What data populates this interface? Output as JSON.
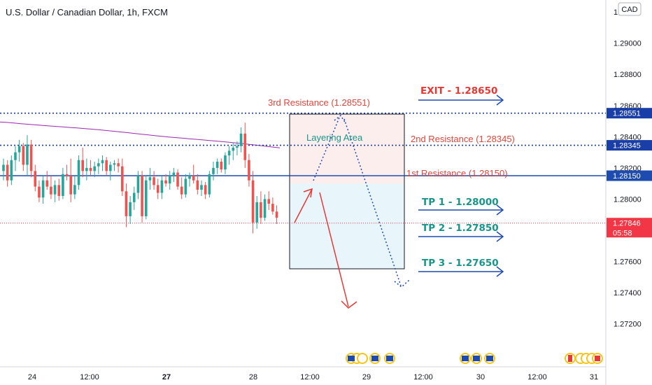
{
  "header": {
    "title": "U.S. Dollar / Canadian Dollar, 1h, FXCM"
  },
  "currency_badge": "CAD",
  "price_axis": {
    "ticks": [
      "1.29200",
      "1.29000",
      "1.28800",
      "1.28600",
      "1.28400",
      "1.28200",
      "1.28000",
      "1.27600",
      "1.27400",
      "1.27200"
    ],
    "tick_values": [
      1.292,
      1.29,
      1.288,
      1.286,
      1.284,
      1.282,
      1.28,
      1.276,
      1.274,
      1.272
    ]
  },
  "time_axis": {
    "labels": [
      "24",
      "12:00",
      "27",
      "12:00",
      "28",
      "12:00",
      "29",
      "12:00",
      "30",
      "12:00",
      "31"
    ],
    "bold": [
      false,
      false,
      true,
      false,
      false,
      false,
      false,
      false,
      false,
      false,
      false
    ]
  },
  "price_tags": {
    "r3": "1.28551",
    "r2": "1.28345",
    "r1": "1.28150",
    "current": "1.27846",
    "countdown": "05:58"
  },
  "annotations": {
    "r3_label": "3rd Resistance (1.28551)",
    "r2_label": "2nd Resistance (1.28345)",
    "r1_label": "1st Resistance (1.28150)",
    "layering": "Layering Area",
    "exit": "EXIT - 1.28650",
    "tp1": "TP 1 - 1.28000",
    "tp2": "TP 2 - 1.27850",
    "tp3": "TP 3 - 1.27650"
  },
  "colors": {
    "up": "#26a69a",
    "down": "#ef5350",
    "resistance_dotted": "#1a3ea8",
    "support_line": "#1e4bb0",
    "current_price": "#f23645",
    "ma": "#9c27b0",
    "arrow_blue": "#1e4bb0",
    "arrow_red": "#e53935"
  },
  "chart_data": {
    "type": "candlestick",
    "title": "U.S. Dollar / Canadian Dollar, 1h, FXCM",
    "ylim": [
      1.2705,
      1.2925
    ],
    "levels": {
      "resistance_3": 1.28551,
      "resistance_2": 1.28345,
      "resistance_1": 1.2815,
      "current": 1.27846,
      "exit": 1.2865,
      "tp1": 1.28,
      "tp2": 1.2785,
      "tp3": 1.2765
    },
    "candles": [
      [
        1.2818,
        1.2826,
        1.2812,
        1.2822
      ],
      [
        1.2822,
        1.2825,
        1.2808,
        1.2812
      ],
      [
        1.2812,
        1.2828,
        1.2809,
        1.2825
      ],
      [
        1.2825,
        1.2834,
        1.2818,
        1.283
      ],
      [
        1.283,
        1.2838,
        1.2824,
        1.2834
      ],
      [
        1.2834,
        1.2836,
        1.2818,
        1.2822
      ],
      [
        1.2822,
        1.2841,
        1.2815,
        1.2835
      ],
      [
        1.2835,
        1.2838,
        1.2814,
        1.2818
      ],
      [
        1.2818,
        1.2822,
        1.2805,
        1.2808
      ],
      [
        1.2808,
        1.2812,
        1.2798,
        1.2801
      ],
      [
        1.2801,
        1.2815,
        1.2797,
        1.2812
      ],
      [
        1.2812,
        1.2818,
        1.2806,
        1.2808
      ],
      [
        1.2808,
        1.2815,
        1.28,
        1.2803
      ],
      [
        1.2803,
        1.2812,
        1.2798,
        1.2809
      ],
      [
        1.2809,
        1.2813,
        1.2799,
        1.2802
      ],
      [
        1.2802,
        1.282,
        1.28,
        1.2816
      ],
      [
        1.2816,
        1.2822,
        1.2812,
        1.2815
      ],
      [
        1.2815,
        1.2826,
        1.2798,
        1.2803
      ],
      [
        1.2803,
        1.2815,
        1.28,
        1.2809
      ],
      [
        1.2809,
        1.2828,
        1.2806,
        1.2825
      ],
      [
        1.2825,
        1.2833,
        1.2814,
        1.2818
      ],
      [
        1.2818,
        1.2826,
        1.2812,
        1.282
      ],
      [
        1.282,
        1.2825,
        1.2815,
        1.2818
      ],
      [
        1.2818,
        1.2824,
        1.2814,
        1.2821
      ],
      [
        1.2821,
        1.2826,
        1.2816,
        1.2823
      ],
      [
        1.2823,
        1.2828,
        1.2818,
        1.2825
      ],
      [
        1.2825,
        1.2827,
        1.2815,
        1.2818
      ],
      [
        1.2818,
        1.2824,
        1.2812,
        1.2822
      ],
      [
        1.2822,
        1.2825,
        1.2818,
        1.2823
      ],
      [
        1.2823,
        1.2826,
        1.2817,
        1.2821
      ],
      [
        1.2821,
        1.2826,
        1.2802,
        1.2805
      ],
      [
        1.2805,
        1.281,
        1.2782,
        1.2789
      ],
      [
        1.2789,
        1.2802,
        1.2784,
        1.2798
      ],
      [
        1.2798,
        1.2808,
        1.2793,
        1.2804
      ],
      [
        1.2804,
        1.2818,
        1.28,
        1.2815
      ],
      [
        1.2815,
        1.2818,
        1.2785,
        1.2789
      ],
      [
        1.2789,
        1.2815,
        1.2787,
        1.2812
      ],
      [
        1.2812,
        1.282,
        1.2806,
        1.2814
      ],
      [
        1.2814,
        1.2818,
        1.2806,
        1.2809
      ],
      [
        1.2809,
        1.2813,
        1.28,
        1.2804
      ],
      [
        1.2804,
        1.2815,
        1.28,
        1.2812
      ],
      [
        1.2812,
        1.2816,
        1.2808,
        1.281
      ],
      [
        1.281,
        1.2818,
        1.2806,
        1.2815
      ],
      [
        1.2815,
        1.282,
        1.2811,
        1.2817
      ],
      [
        1.2817,
        1.2819,
        1.2806,
        1.2808
      ],
      [
        1.2808,
        1.2814,
        1.28,
        1.2803
      ],
      [
        1.2803,
        1.2816,
        1.2801,
        1.2813
      ],
      [
        1.2813,
        1.2817,
        1.2808,
        1.2815
      ],
      [
        1.2815,
        1.2822,
        1.281,
        1.2812
      ],
      [
        1.2812,
        1.2816,
        1.2803,
        1.2806
      ],
      [
        1.2806,
        1.2812,
        1.2802,
        1.2809
      ],
      [
        1.2809,
        1.2811,
        1.28,
        1.2803
      ],
      [
        1.2803,
        1.2818,
        1.2801,
        1.2816
      ],
      [
        1.2816,
        1.2824,
        1.2812,
        1.282
      ],
      [
        1.282,
        1.2826,
        1.2816,
        1.2824
      ],
      [
        1.2824,
        1.2826,
        1.2817,
        1.2819
      ],
      [
        1.2819,
        1.283,
        1.2816,
        1.2828
      ],
      [
        1.2828,
        1.2834,
        1.2822,
        1.2831
      ],
      [
        1.2831,
        1.2836,
        1.2825,
        1.2833
      ],
      [
        1.2833,
        1.2837,
        1.2828,
        1.2834
      ],
      [
        1.2834,
        1.2846,
        1.283,
        1.2842
      ],
      [
        1.2842,
        1.2849,
        1.282,
        1.2825
      ],
      [
        1.2825,
        1.2829,
        1.2808,
        1.2812
      ],
      [
        1.2812,
        1.2818,
        1.2778,
        1.2785
      ],
      [
        1.2785,
        1.2802,
        1.2781,
        1.2798
      ],
      [
        1.2798,
        1.2805,
        1.2784,
        1.2788
      ],
      [
        1.2788,
        1.2803,
        1.2786,
        1.28
      ],
      [
        1.28,
        1.2805,
        1.2793,
        1.2797
      ],
      [
        1.2797,
        1.2801,
        1.279,
        1.2792
      ],
      [
        1.2792,
        1.2796,
        1.2784,
        1.2788
      ]
    ]
  }
}
